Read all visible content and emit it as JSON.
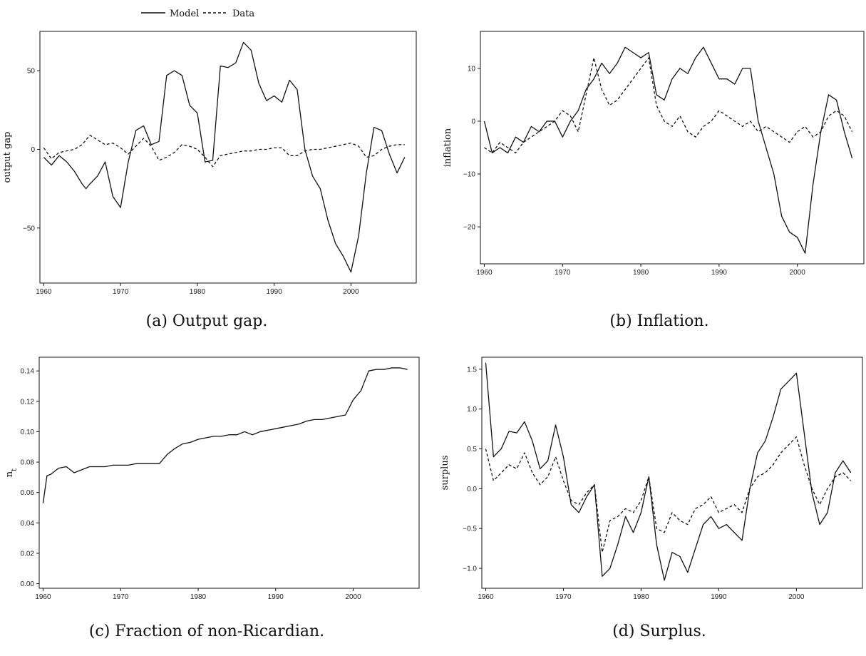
{
  "legend": [
    {
      "name": "Model",
      "style": "solid"
    },
    {
      "name": "Data",
      "style": "dashed"
    }
  ],
  "colors": {
    "line": "#111111",
    "frame": "#111111",
    "tick_text": "#222222"
  },
  "chart_data": [
    {
      "type": "line",
      "caption": "(a) Output gap.",
      "ylabel": "output gap",
      "xlim": [
        1959.5,
        2008.5
      ],
      "ylim": [
        -85,
        75
      ],
      "xticks": [
        1960,
        1970,
        1980,
        1990,
        2000
      ],
      "yticks": [
        -50,
        0,
        50
      ],
      "ytick_labels": [
        "−50",
        "0",
        "50"
      ],
      "series": [
        {
          "name": "Model",
          "style": "solid",
          "x": [
            1960,
            1961,
            1962,
            1963,
            1964,
            1965,
            1965.5,
            1966,
            1967,
            1968,
            1969,
            1970,
            1971,
            1972,
            1973,
            1974,
            1975,
            1976,
            1977,
            1978,
            1979,
            1980,
            1981,
            1982,
            1983,
            1984,
            1985,
            1986,
            1987,
            1988,
            1989,
            1990,
            1991,
            1992,
            1993,
            1994,
            1995,
            1996,
            1997,
            1998,
            1999,
            2000,
            2001,
            2002,
            2003,
            2004,
            2005,
            2006,
            2007
          ],
          "y": [
            -5,
            -10,
            -4,
            -8,
            -14,
            -22,
            -25,
            -22,
            -17,
            -8,
            -30,
            -37,
            -8,
            12,
            15,
            3,
            5,
            47,
            50,
            47,
            28,
            23,
            -8,
            -7,
            53,
            52,
            55,
            68,
            63,
            42,
            31,
            34,
            30,
            44,
            38,
            0,
            -17,
            -25,
            -45,
            -60,
            -68,
            -78,
            -55,
            -15,
            14,
            12,
            -3,
            -15,
            -5
          ]
        },
        {
          "name": "Data",
          "style": "dashed",
          "x": [
            1960,
            1961,
            1962,
            1963,
            1964,
            1965,
            1966,
            1967,
            1968,
            1969,
            1970,
            1971,
            1972,
            1973,
            1974,
            1975,
            1976,
            1977,
            1978,
            1979,
            1980,
            1981,
            1982,
            1983,
            1984,
            1985,
            1986,
            1987,
            1988,
            1989,
            1990,
            1991,
            1992,
            1993,
            1994,
            1995,
            1996,
            1997,
            1998,
            1999,
            2000,
            2001,
            2002,
            2003,
            2004,
            2005,
            2006,
            2007
          ],
          "y": [
            1,
            -6,
            -2,
            -1,
            0,
            3,
            9,
            6,
            3,
            4,
            1,
            -3,
            2,
            7,
            2,
            -7,
            -5,
            -2,
            3,
            2,
            0,
            -5,
            -11,
            -4,
            -3,
            -2,
            -1,
            -1,
            0,
            0,
            1,
            1,
            -4,
            -4,
            -1,
            0,
            0,
            1,
            2,
            3,
            4,
            2,
            -5,
            -4,
            0,
            2,
            3,
            3
          ]
        }
      ]
    },
    {
      "type": "line",
      "caption": "(b) Inflation.",
      "ylabel": "inflation",
      "xlim": [
        1959.5,
        2008.5
      ],
      "ylim": [
        -27,
        17
      ],
      "xticks": [
        1960,
        1970,
        1980,
        1990,
        2000
      ],
      "yticks": [
        -20,
        -10,
        0,
        10
      ],
      "ytick_labels": [
        "−20",
        "−10",
        "0",
        "10"
      ],
      "series": [
        {
          "name": "Model",
          "style": "solid",
          "x": [
            1960,
            1961,
            1962,
            1963,
            1964,
            1965,
            1966,
            1967,
            1968,
            1969,
            1970,
            1971,
            1972,
            1973,
            1974,
            1975,
            1976,
            1977,
            1978,
            1979,
            1980,
            1981,
            1982,
            1983,
            1984,
            1985,
            1986,
            1987,
            1988,
            1989,
            1990,
            1991,
            1992,
            1993,
            1994,
            1995,
            1996,
            1997,
            1998,
            1999,
            2000,
            2001,
            2002,
            2003,
            2004,
            2005,
            2006,
            2007
          ],
          "y": [
            0,
            -6,
            -5,
            -6,
            -3,
            -4,
            -1,
            -2,
            0,
            0,
            -3,
            0,
            2,
            6,
            8,
            11,
            9,
            11,
            14,
            13,
            12,
            13,
            5,
            4,
            8,
            10,
            9,
            12,
            14,
            11,
            8,
            8,
            7,
            10,
            10,
            0,
            -5,
            -10,
            -18,
            -21,
            -22,
            -25,
            -12,
            -2,
            5,
            4,
            -2,
            -7
          ]
        },
        {
          "name": "Data",
          "style": "dashed",
          "x": [
            1960,
            1961,
            1962,
            1963,
            1964,
            1965,
            1966,
            1967,
            1968,
            1969,
            1970,
            1971,
            1972,
            1973,
            1974,
            1975,
            1976,
            1977,
            1978,
            1979,
            1980,
            1981,
            1982,
            1983,
            1984,
            1985,
            1986,
            1987,
            1988,
            1989,
            1990,
            1991,
            1992,
            1993,
            1994,
            1995,
            1996,
            1997,
            1998,
            1999,
            2000,
            2001,
            2002,
            2003,
            2004,
            2005,
            2006,
            2007
          ],
          "y": [
            -5,
            -6,
            -4,
            -5,
            -6,
            -4,
            -3,
            -2,
            -1,
            0,
            2,
            1,
            -2,
            5,
            12,
            6,
            3,
            4,
            6,
            8,
            10,
            12,
            3,
            0,
            -1,
            1,
            -2,
            -3,
            -1,
            0,
            2,
            1,
            0,
            -1,
            0,
            -2,
            -1,
            -2,
            -3,
            -4,
            -2,
            -1,
            -3,
            -2,
            1,
            2,
            1,
            -2
          ]
        }
      ]
    },
    {
      "type": "line",
      "caption": "(c) Fraction of non-Ricardian.",
      "ylabel": "n",
      "ylabel_subscript": "t",
      "xlim": [
        1959.5,
        2008.5
      ],
      "ylim": [
        -0.003,
        0.149
      ],
      "xticks": [
        1960,
        1970,
        1980,
        1990,
        2000
      ],
      "yticks": [
        0.0,
        0.02,
        0.04,
        0.06,
        0.08,
        0.1,
        0.12,
        0.14
      ],
      "ytick_labels": [
        "0.00",
        "0.02",
        "0.04",
        "0.06",
        "0.08",
        "0.10",
        "0.12",
        "0.14"
      ],
      "series": [
        {
          "name": "Model",
          "style": "solid",
          "x": [
            1960,
            1960.5,
            1961,
            1962,
            1963,
            1964,
            1965,
            1966,
            1967,
            1968,
            1969,
            1970,
            1971,
            1972,
            1973,
            1974,
            1975,
            1976,
            1977,
            1978,
            1979,
            1980,
            1981,
            1982,
            1983,
            1984,
            1985,
            1986,
            1987,
            1988,
            1989,
            1990,
            1991,
            1992,
            1993,
            1994,
            1995,
            1996,
            1997,
            1998,
            1999,
            2000,
            2001,
            2002,
            2003,
            2004,
            2005,
            2006,
            2007
          ],
          "y": [
            0.053,
            0.071,
            0.072,
            0.076,
            0.077,
            0.073,
            0.075,
            0.077,
            0.077,
            0.077,
            0.078,
            0.078,
            0.078,
            0.079,
            0.079,
            0.079,
            0.079,
            0.085,
            0.089,
            0.092,
            0.093,
            0.095,
            0.096,
            0.097,
            0.097,
            0.098,
            0.098,
            0.1,
            0.098,
            0.1,
            0.101,
            0.102,
            0.103,
            0.104,
            0.105,
            0.107,
            0.108,
            0.108,
            0.109,
            0.11,
            0.111,
            0.121,
            0.127,
            0.14,
            0.141,
            0.141,
            0.142,
            0.142,
            0.141
          ]
        }
      ]
    },
    {
      "type": "line",
      "caption": "(d) Surplus.",
      "ylabel": "surplus",
      "xlim": [
        1959.5,
        2008.5
      ],
      "ylim": [
        -1.25,
        1.65
      ],
      "xticks": [
        1960,
        1970,
        1980,
        1990,
        2000
      ],
      "yticks": [
        -1.0,
        -0.5,
        0.0,
        0.5,
        1.0,
        1.5
      ],
      "ytick_labels": [
        "−1.0",
        "−0.5",
        "0.0",
        "0.5",
        "1.0",
        "1.5"
      ],
      "series": [
        {
          "name": "Model",
          "style": "solid",
          "x": [
            1960,
            1961,
            1962,
            1963,
            1964,
            1965,
            1966,
            1967,
            1968,
            1969,
            1970,
            1971,
            1972,
            1973,
            1974,
            1975,
            1976,
            1977,
            1978,
            1979,
            1980,
            1981,
            1982,
            1983,
            1984,
            1985,
            1986,
            1987,
            1988,
            1989,
            1990,
            1991,
            1992,
            1993,
            1994,
            1995,
            1996,
            1997,
            1998,
            1999,
            2000,
            2001,
            2002,
            2003,
            2004,
            2005,
            2006,
            2007
          ],
          "y": [
            1.58,
            0.4,
            0.5,
            0.72,
            0.7,
            0.84,
            0.6,
            0.25,
            0.35,
            0.8,
            0.4,
            -0.2,
            -0.3,
            -0.1,
            0.05,
            -1.1,
            -1.0,
            -0.7,
            -0.35,
            -0.55,
            -0.3,
            0.15,
            -0.7,
            -1.15,
            -0.8,
            -0.85,
            -1.05,
            -0.75,
            -0.45,
            -0.35,
            -0.5,
            -0.45,
            -0.55,
            -0.65,
            0.0,
            0.45,
            0.6,
            0.9,
            1.25,
            1.35,
            1.45,
            0.7,
            -0.05,
            -0.45,
            -0.3,
            0.2,
            0.35,
            0.2
          ]
        },
        {
          "name": "Data",
          "style": "dashed",
          "x": [
            1960,
            1961,
            1962,
            1963,
            1964,
            1965,
            1966,
            1967,
            1968,
            1969,
            1970,
            1971,
            1972,
            1973,
            1974,
            1975,
            1976,
            1977,
            1978,
            1979,
            1980,
            1981,
            1982,
            1983,
            1984,
            1985,
            1986,
            1987,
            1988,
            1989,
            1990,
            1991,
            1992,
            1993,
            1994,
            1995,
            1996,
            1997,
            1998,
            1999,
            2000,
            2001,
            2002,
            2003,
            2004,
            2005,
            2006,
            2007
          ],
          "y": [
            0.5,
            0.1,
            0.2,
            0.3,
            0.25,
            0.45,
            0.2,
            0.05,
            0.15,
            0.4,
            0.1,
            -0.15,
            -0.2,
            -0.05,
            0.05,
            -0.8,
            -0.4,
            -0.35,
            -0.25,
            -0.3,
            -0.15,
            0.15,
            -0.5,
            -0.55,
            -0.3,
            -0.4,
            -0.45,
            -0.25,
            -0.2,
            -0.1,
            -0.3,
            -0.25,
            -0.2,
            -0.3,
            0.0,
            0.15,
            0.2,
            0.3,
            0.45,
            0.55,
            0.65,
            0.3,
            0.0,
            -0.2,
            0.0,
            0.15,
            0.2,
            0.1
          ]
        }
      ]
    }
  ]
}
